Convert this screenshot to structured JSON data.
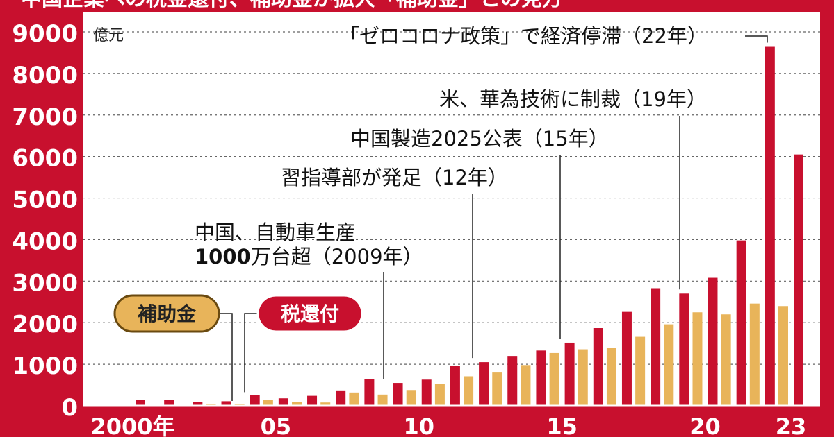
{
  "header": {
    "title": "中国企業への税金還付、補助金が拡大「補助金」との見方"
  },
  "chart_data": {
    "type": "bar",
    "unit_label": "億元",
    "x": [
      2000,
      2001,
      2002,
      2003,
      2004,
      2005,
      2006,
      2007,
      2008,
      2009,
      2010,
      2011,
      2012,
      2013,
      2014,
      2015,
      2016,
      2017,
      2018,
      2019,
      2020,
      2021,
      2022,
      2023
    ],
    "x_tick_labels": [
      {
        "x": 2000,
        "label": "2000年"
      },
      {
        "x": 2005,
        "label": "05"
      },
      {
        "x": 2010,
        "label": "10"
      },
      {
        "x": 2015,
        "label": "15"
      },
      {
        "x": 2020,
        "label": "20"
      },
      {
        "x": 2023,
        "label": "23"
      }
    ],
    "y_ticks": [
      0,
      1000,
      2000,
      3000,
      4000,
      5000,
      6000,
      7000,
      8000,
      9000
    ],
    "ylim": [
      0,
      9300
    ],
    "grid": true,
    "series": [
      {
        "name": "補助金",
        "color": "#e8b45a",
        "values": [
          0,
          0,
          0,
          40,
          50,
          140,
          100,
          80,
          320,
          270,
          380,
          520,
          710,
          800,
          980,
          1270,
          1360,
          1400,
          1660,
          1960,
          2250,
          2200,
          2460,
          2400
        ]
      },
      {
        "name": "税還付",
        "color": "#c8102e",
        "values": [
          150,
          150,
          100,
          110,
          260,
          180,
          240,
          370,
          640,
          550,
          630,
          960,
          1050,
          1200,
          1330,
          1520,
          1870,
          2260,
          2830,
          2700,
          3080,
          3980,
          8640,
          6050
        ]
      }
    ],
    "legend": [
      {
        "label": "補助金",
        "year": 2004
      },
      {
        "label": "税還付",
        "year": 2004
      }
    ],
    "annotations": [
      {
        "lines": [
          "中国、自動車生産"
        ],
        "bold_prefix": "1000",
        "second_line": "万台超（2009年）",
        "year": 2009
      },
      {
        "lines": [
          "習指導部が発足（12年）"
        ],
        "year": 2012
      },
      {
        "lines": [
          "中国製造2025公表（15年）"
        ],
        "year": 2015
      },
      {
        "lines": [
          "米、華為技術に制裁（19年）"
        ],
        "year": 2019
      },
      {
        "lines": [
          "「ゼロコロナ政策」で経済停滞（22年）"
        ],
        "year": 2022
      }
    ]
  }
}
